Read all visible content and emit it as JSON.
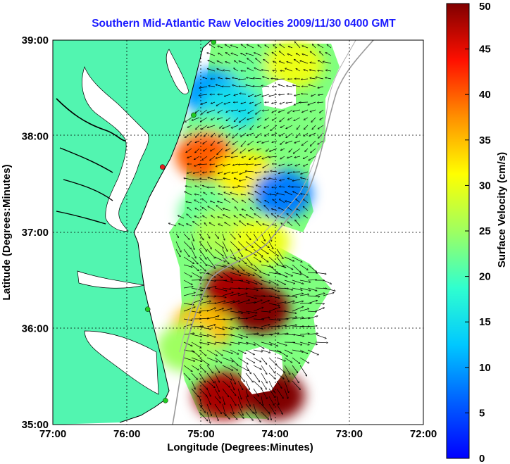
{
  "title": "Southern Mid-Atlantic Raw Velocities 2009/11/30 0400 GMT",
  "x_axis": {
    "label": "Longitude (Degrees:Minutes)",
    "ticks": [
      "77:00",
      "76:00",
      "75:00",
      "74:00",
      "73:00",
      "72:00"
    ]
  },
  "y_axis": {
    "label": "Latitude (Degrees:Minutes)",
    "ticks": [
      "35:00",
      "36:00",
      "37:00",
      "38:00",
      "39:00"
    ]
  },
  "colorbar": {
    "label": "Surface Velocity (cm/s)",
    "ticks": [
      "0",
      "5",
      "10",
      "15",
      "20",
      "25",
      "30",
      "35",
      "40",
      "45",
      "50"
    ],
    "min": 0,
    "max": 50,
    "colormap": "jet"
  },
  "colors": {
    "land": "#52f5b0",
    "title": "#1a1aff",
    "grid": "#000000",
    "isobath": "#999999",
    "station_green": "#22cc22",
    "station_red": "#e02020"
  },
  "chart_data": {
    "type": "heatmap",
    "title": "Southern Mid-Atlantic Raw Velocities 2009/11/30 0400 GMT",
    "xlabel": "Longitude (Degrees:Minutes)",
    "ylabel": "Latitude (Degrees:Minutes)",
    "xlim": [
      -77,
      -72
    ],
    "ylim": [
      35,
      39
    ],
    "grid": true,
    "value_units": "cm/s",
    "value_range": [
      0,
      50
    ],
    "regions": [
      {
        "lon": -74.3,
        "lat": 38.6,
        "speed": 22
      },
      {
        "lon": -74.85,
        "lat": 38.45,
        "speed": 10
      },
      {
        "lon": -74.6,
        "lat": 38.3,
        "speed": 15
      },
      {
        "lon": -73.75,
        "lat": 38.75,
        "speed": 30
      },
      {
        "lon": -74.9,
        "lat": 38.0,
        "speed": 22
      },
      {
        "lon": -74.95,
        "lat": 37.8,
        "speed": 40
      },
      {
        "lon": -74.4,
        "lat": 37.6,
        "speed": 32
      },
      {
        "lon": -73.9,
        "lat": 37.4,
        "speed": 8
      },
      {
        "lon": -74.9,
        "lat": 37.2,
        "speed": 22
      },
      {
        "lon": -74.7,
        "lat": 37.0,
        "speed": 26
      },
      {
        "lon": -74.2,
        "lat": 36.9,
        "speed": 30
      },
      {
        "lon": -74.55,
        "lat": 36.4,
        "speed": 48
      },
      {
        "lon": -74.2,
        "lat": 36.2,
        "speed": 50
      },
      {
        "lon": -75.0,
        "lat": 36.0,
        "speed": 35
      },
      {
        "lon": -75.2,
        "lat": 35.8,
        "speed": 25
      },
      {
        "lon": -74.7,
        "lat": 35.3,
        "speed": 48
      },
      {
        "lon": -74.0,
        "lat": 35.3,
        "speed": 50
      }
    ],
    "stations": [
      {
        "lon": -74.83,
        "lat": 38.98,
        "color": "green"
      },
      {
        "lon": -75.1,
        "lat": 38.22,
        "color": "green"
      },
      {
        "lon": -75.52,
        "lat": 37.68,
        "color": "red"
      },
      {
        "lon": -75.72,
        "lat": 36.2,
        "color": "green"
      },
      {
        "lon": -75.48,
        "lat": 35.25,
        "color": "green"
      }
    ]
  }
}
